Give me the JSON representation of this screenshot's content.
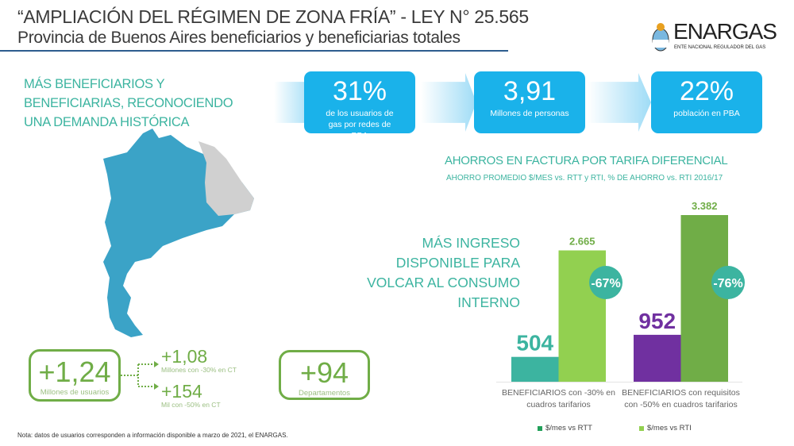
{
  "header": {
    "title": "“AMPLIACIÓN DEL RÉGIMEN DE ZONA FRÍA” - LEY N° 25.565",
    "subtitle": "Provincia de Buenos Aires beneficiarios y beneficiarias totales"
  },
  "logo": {
    "name": "ENARGAS",
    "tagline": "ENTE NACIONAL REGULADOR DEL GAS"
  },
  "headline": "MÁS BENEFICIARIOS Y BENEFICIARIAS, RECONOCIENDO UNA DEMANDA HISTÓRICA",
  "kpis": [
    {
      "value": "31%",
      "label": "de  los usuarios de gas por redes de PBA"
    },
    {
      "value": "3,91",
      "label": "Millones de personas"
    },
    {
      "value": "22%",
      "label": "población  en PBA"
    }
  ],
  "users": {
    "total": "+1,24",
    "total_label": "Millones de usuarios",
    "split": [
      {
        "value": "+1,08",
        "label": "Millones con -30% en CT"
      },
      {
        "value": "+154",
        "label": "Mil con -50% en CT"
      }
    ]
  },
  "departments": {
    "value": "+94",
    "label": "Departamentos"
  },
  "side_text": "MÁS INGRESO DISPONIBLE PARA VOLCAR AL CONSUMO INTERNO",
  "note": "Nota:  datos de usuarios corresponden a información disponible a marzo de 2021, el ENARGAS.",
  "colors": {
    "blue": "#1ab2ea",
    "teal": "#3cb4a0",
    "green": "#70ad47",
    "light_green": "#92d050",
    "purple": "#7030a0",
    "title_rule": "#2d5d8f"
  },
  "chart_data": {
    "type": "bar",
    "title": "AHORROS EN FACTURA POR TARIFA DIFERENCIAL",
    "subtitle": "AHORRO PROMEDIO $/MES vs. RTT y RTI, % DE AHORRO vs. RTI 2016/17",
    "categories": [
      "BENEFICIARIOS con -30% en cuadros tarifarios",
      "BENEFICIARIOS con requisitos con -50% en cuadros tarifarios"
    ],
    "series": [
      {
        "name": "$/mes vs RTT",
        "values": [
          504,
          952
        ],
        "labels": [
          "504",
          "952"
        ],
        "colors": [
          "#3cb4a0",
          "#7030a0"
        ],
        "legend_color": "#22a05a"
      },
      {
        "name": "$/mes vs RTI",
        "values": [
          2665,
          3382
        ],
        "labels": [
          "2.665",
          "3.382"
        ],
        "colors": [
          "#92d050",
          "#70ad47"
        ],
        "legend_color": "#92d050"
      }
    ],
    "savings_pct": [
      "-67%",
      "-76%"
    ],
    "ylim": [
      0,
      3382
    ],
    "grid": false,
    "legend": "bottom"
  }
}
